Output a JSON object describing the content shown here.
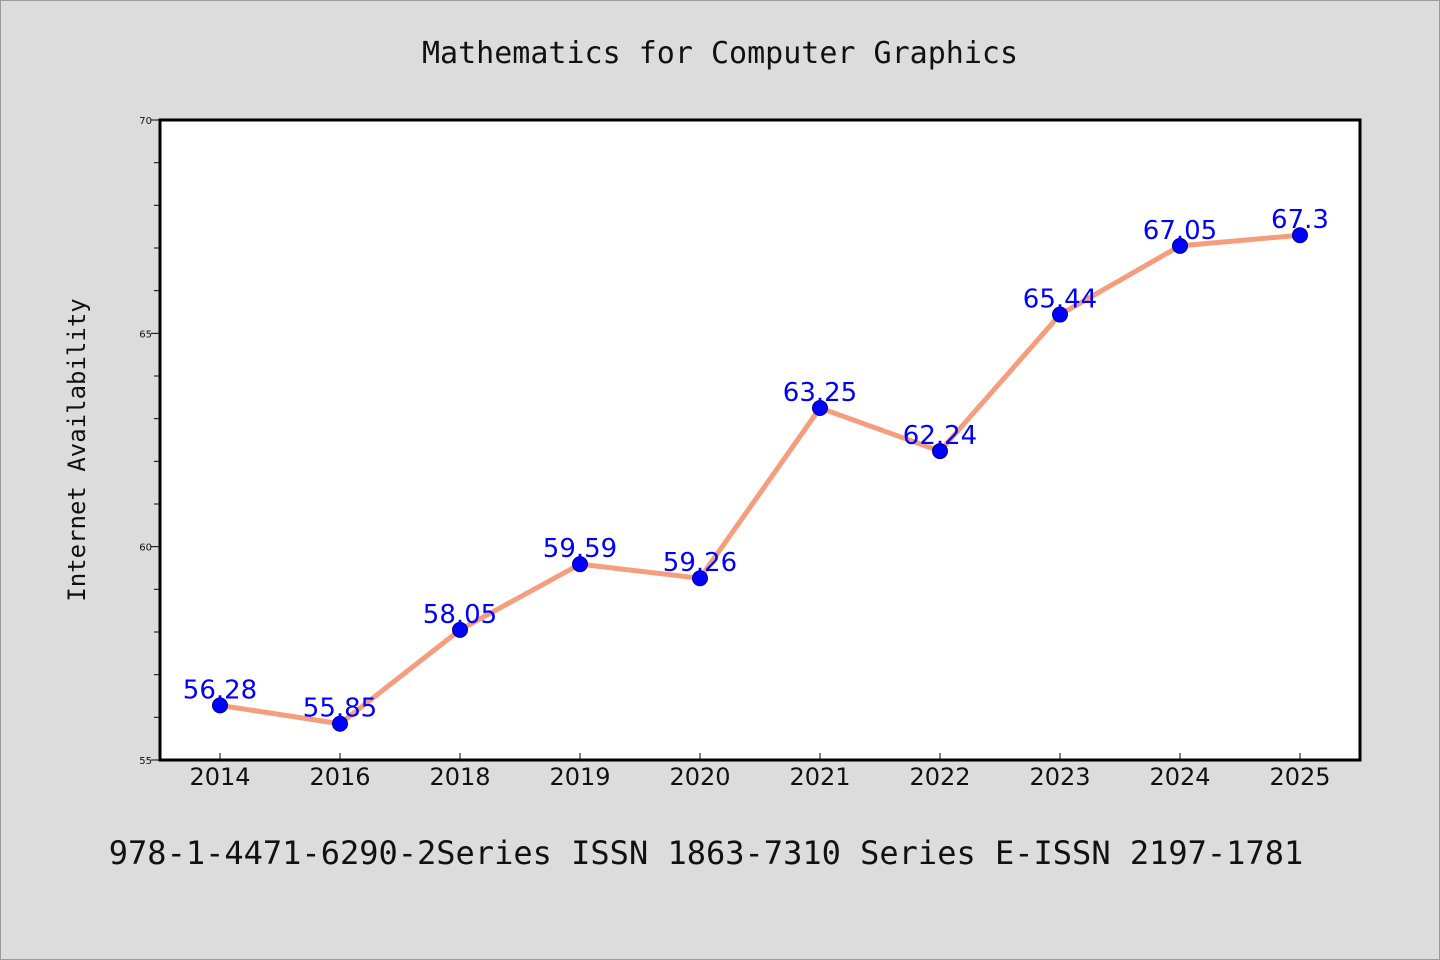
{
  "chart_data": {
    "type": "line",
    "title": "Mathematics for Computer Graphics",
    "xlabel": "",
    "ylabel": "Internet Availability",
    "footer": "978-1-4471-6290-2Series ISSN 1863-7310 Series E-ISSN 2197-1781",
    "categories": [
      "2014",
      "2016",
      "2018",
      "2019",
      "2020",
      "2021",
      "2022",
      "2023",
      "2024",
      "2025"
    ],
    "series": [
      {
        "values": [
          56.28,
          55.85,
          58.05,
          59.59,
          59.26,
          63.25,
          62.24,
          65.44,
          67.05,
          67.3
        ],
        "data_labels": [
          "56.28",
          "55.85",
          "58.05",
          "59.59",
          "59.26",
          "63.25",
          "62.24",
          "65.44",
          "67.05",
          "67.3"
        ]
      }
    ],
    "ylim": [
      55,
      70
    ],
    "yticks": [
      "55",
      "60",
      "65",
      "70"
    ],
    "grid": false,
    "legend": "none",
    "colors": {
      "line": "#f59d7d",
      "marker": "#0000ff",
      "label": "#0000ff",
      "background": "#dcdcdc",
      "plot_background": "#ffffff"
    }
  }
}
